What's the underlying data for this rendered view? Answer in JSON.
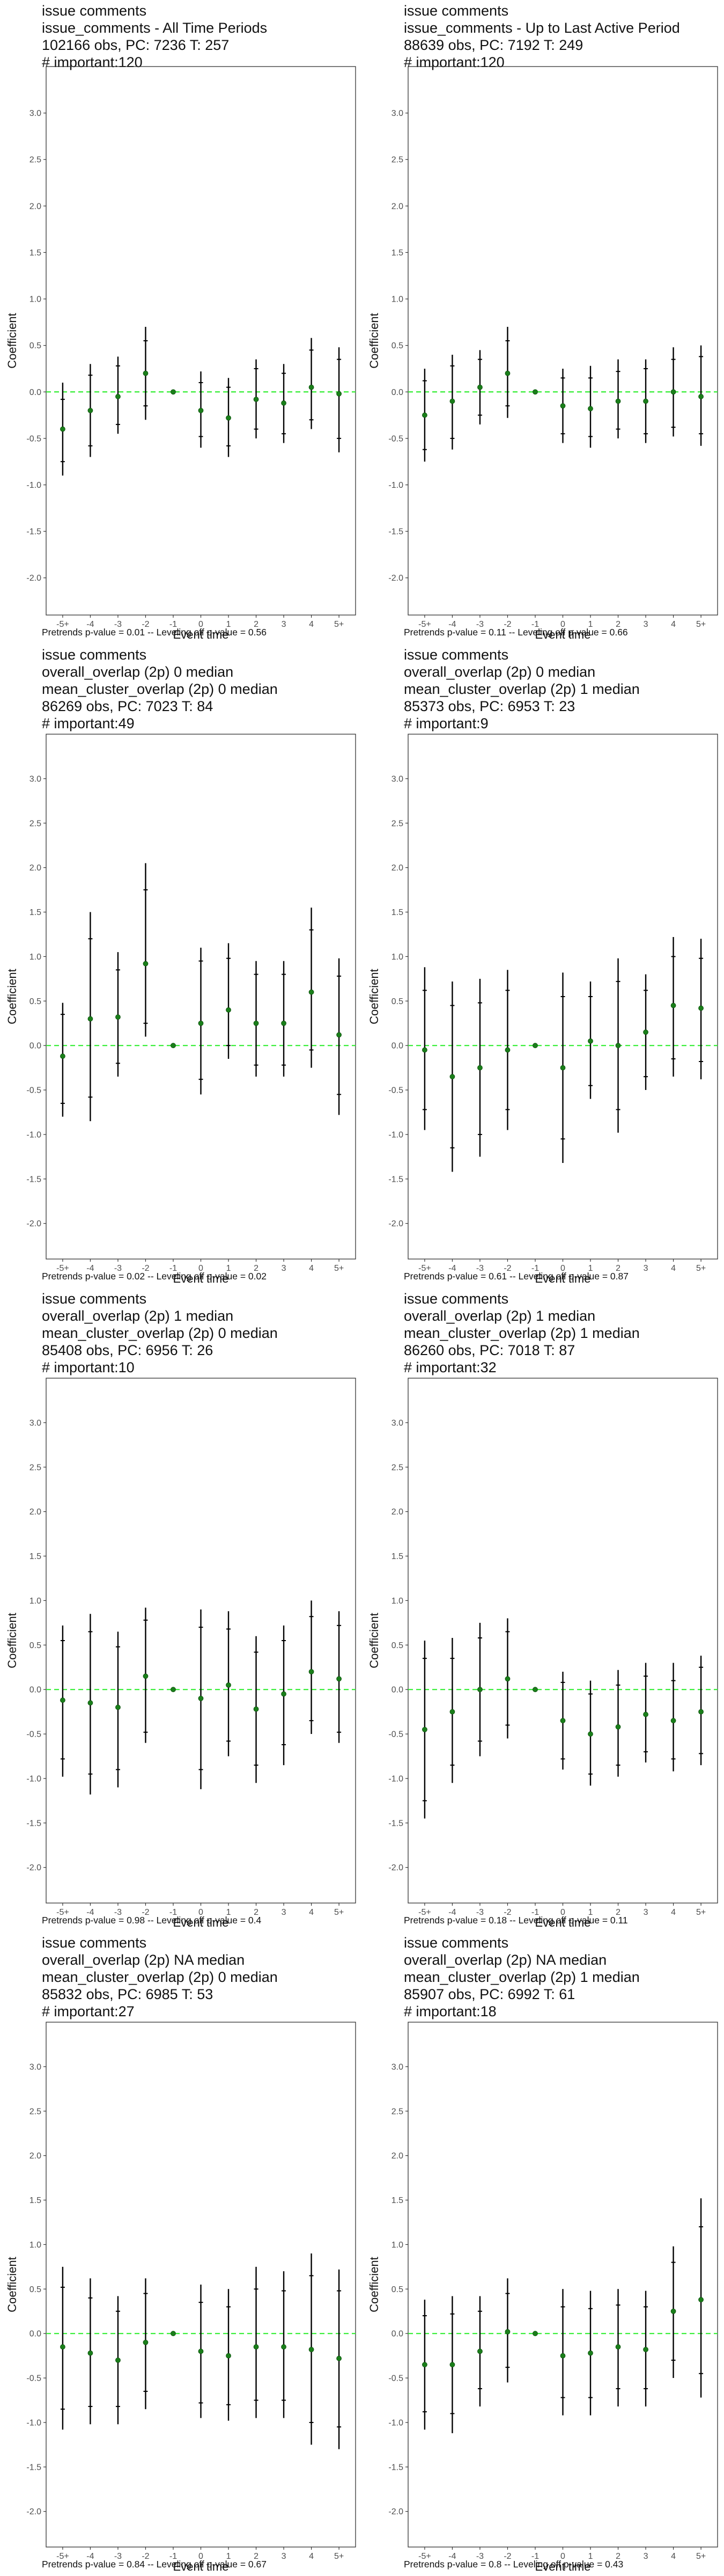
{
  "chart_data": [
    {
      "type": "errorbar",
      "title_lines": [
        "issue comments",
        "issue_comments - All Time Periods",
        "102166 obs, PC: 7236 T: 257",
        "# important:120"
      ],
      "xlabel": "Event time",
      "ylabel": "Coefficient",
      "ylim": [
        -2.4,
        3.5
      ],
      "yticks": [
        -2.0,
        -1.5,
        -1.0,
        -0.5,
        0.0,
        0.5,
        1.0,
        1.5,
        2.0,
        2.5,
        3.0
      ],
      "ytick_labels": [
        "-2.0",
        "-1.5",
        "-1.0",
        "-0.5",
        "0.0",
        "0.5",
        "1.0",
        "1.5",
        "2.0",
        "2.5",
        "3.0"
      ],
      "categories": [
        "-5+",
        "-4",
        "-3",
        "-2",
        "-1",
        "0",
        "1",
        "2",
        "3",
        "4",
        "5+"
      ],
      "estimates": [
        -0.4,
        -0.2,
        -0.05,
        0.2,
        0.0,
        -0.2,
        -0.28,
        -0.08,
        -0.12,
        0.05,
        -0.02
      ],
      "ci_outer_low": [
        -0.9,
        -0.7,
        -0.45,
        -0.3,
        0.0,
        -0.6,
        -0.7,
        -0.5,
        -0.55,
        -0.4,
        -0.65
      ],
      "ci_outer_high": [
        0.1,
        0.3,
        0.38,
        0.7,
        0.0,
        0.22,
        0.15,
        0.35,
        0.3,
        0.58,
        0.48
      ],
      "ci_inner_low": [
        -0.75,
        -0.58,
        -0.35,
        -0.15,
        0.0,
        -0.48,
        -0.58,
        -0.4,
        -0.45,
        -0.3,
        -0.5
      ],
      "ci_inner_high": [
        -0.08,
        0.18,
        0.28,
        0.55,
        0.0,
        0.1,
        0.05,
        0.25,
        0.2,
        0.45,
        0.35
      ],
      "reference_line": 0.0,
      "footer": "Pretrends p-value = 0.01 -- Leveling off p-value = 0.56",
      "colors": {
        "point": "#1a7f1a",
        "zero_line": "#33ee33",
        "errorbar": "#000000",
        "panel_border": "#333333"
      }
    },
    {
      "type": "errorbar",
      "title_lines": [
        "issue comments",
        "issue_comments - Up to Last Active Period",
        "88639 obs, PC: 7192 T: 249",
        "# important:120"
      ],
      "xlabel": "Event time",
      "ylabel": "Coefficient",
      "ylim": [
        -2.4,
        3.5
      ],
      "yticks": [
        -2.0,
        -1.5,
        -1.0,
        -0.5,
        0.0,
        0.5,
        1.0,
        1.5,
        2.0,
        2.5,
        3.0
      ],
      "ytick_labels": [
        "-2.0",
        "-1.5",
        "-1.0",
        "-0.5",
        "0.0",
        "0.5",
        "1.0",
        "1.5",
        "2.0",
        "2.5",
        "3.0"
      ],
      "categories": [
        "-5+",
        "-4",
        "-3",
        "-2",
        "-1",
        "0",
        "1",
        "2",
        "3",
        "4",
        "5+"
      ],
      "estimates": [
        -0.25,
        -0.1,
        0.05,
        0.2,
        0.0,
        -0.15,
        -0.18,
        -0.1,
        -0.1,
        0.0,
        -0.05
      ],
      "ci_outer_low": [
        -0.75,
        -0.62,
        -0.35,
        -0.28,
        0.0,
        -0.55,
        -0.6,
        -0.5,
        -0.55,
        -0.48,
        -0.58
      ],
      "ci_outer_high": [
        0.25,
        0.4,
        0.45,
        0.7,
        0.0,
        0.25,
        0.28,
        0.35,
        0.35,
        0.48,
        0.5
      ],
      "ci_inner_low": [
        -0.62,
        -0.5,
        -0.25,
        -0.15,
        0.0,
        -0.45,
        -0.48,
        -0.4,
        -0.45,
        -0.38,
        -0.45
      ],
      "ci_inner_high": [
        0.12,
        0.28,
        0.35,
        0.55,
        0.0,
        0.15,
        0.15,
        0.22,
        0.25,
        0.35,
        0.38
      ],
      "reference_line": 0.0,
      "footer": "Pretrends p-value = 0.11 -- Leveling off p-value = 0.66",
      "colors": {
        "point": "#1a7f1a",
        "zero_line": "#33ee33",
        "errorbar": "#000000",
        "panel_border": "#333333"
      }
    },
    {
      "type": "errorbar",
      "title_lines": [
        "issue comments",
        "overall_overlap (2p) 0 median",
        "mean_cluster_overlap (2p) 0 median",
        "86269 obs, PC: 7023 T: 84",
        "# important:49"
      ],
      "xlabel": "Event time",
      "ylabel": "Coefficient",
      "ylim": [
        -2.4,
        3.5
      ],
      "yticks": [
        -2.0,
        -1.5,
        -1.0,
        -0.5,
        0.0,
        0.5,
        1.0,
        1.5,
        2.0,
        2.5,
        3.0
      ],
      "ytick_labels": [
        "-2.0",
        "-1.5",
        "-1.0",
        "-0.5",
        "0.0",
        "0.5",
        "1.0",
        "1.5",
        "2.0",
        "2.5",
        "3.0"
      ],
      "categories": [
        "-5+",
        "-4",
        "-3",
        "-2",
        "-1",
        "0",
        "1",
        "2",
        "3",
        "4",
        "5+"
      ],
      "estimates": [
        -0.12,
        0.3,
        0.32,
        0.92,
        0.0,
        0.25,
        0.4,
        0.25,
        0.25,
        0.6,
        0.12
      ],
      "ci_outer_low": [
        -0.8,
        -0.85,
        -0.35,
        0.1,
        0.0,
        -0.55,
        -0.15,
        -0.35,
        -0.35,
        -0.25,
        -0.78
      ],
      "ci_outer_high": [
        0.48,
        1.5,
        1.05,
        2.05,
        0.0,
        1.1,
        1.15,
        0.95,
        0.95,
        1.55,
        0.98
      ],
      "ci_inner_low": [
        -0.65,
        -0.58,
        -0.2,
        0.25,
        0.0,
        -0.38,
        0.0,
        -0.22,
        -0.22,
        -0.05,
        -0.55
      ],
      "ci_inner_high": [
        0.35,
        1.2,
        0.85,
        1.75,
        0.0,
        0.95,
        0.98,
        0.8,
        0.8,
        1.3,
        0.78
      ],
      "reference_line": 0.0,
      "footer": "Pretrends p-value = 0.02 -- Leveling off p-value = 0.02",
      "colors": {
        "point": "#1a7f1a",
        "zero_line": "#33ee33",
        "errorbar": "#000000",
        "panel_border": "#333333"
      }
    },
    {
      "type": "errorbar",
      "title_lines": [
        "issue comments",
        "overall_overlap (2p) 0 median",
        "mean_cluster_overlap (2p) 1 median",
        "85373 obs, PC: 6953 T: 23",
        "# important:9"
      ],
      "xlabel": "Event time",
      "ylabel": "Coefficient",
      "ylim": [
        -2.4,
        3.5
      ],
      "yticks": [
        -2.0,
        -1.5,
        -1.0,
        -0.5,
        0.0,
        0.5,
        1.0,
        1.5,
        2.0,
        2.5,
        3.0
      ],
      "ytick_labels": [
        "-2.0",
        "-1.5",
        "-1.0",
        "-0.5",
        "0.0",
        "0.5",
        "1.0",
        "1.5",
        "2.0",
        "2.5",
        "3.0"
      ],
      "categories": [
        "-5+",
        "-4",
        "-3",
        "-2",
        "-1",
        "0",
        "1",
        "2",
        "3",
        "4",
        "5+"
      ],
      "estimates": [
        -0.05,
        -0.35,
        -0.25,
        -0.05,
        0.0,
        -0.25,
        0.05,
        0.0,
        0.15,
        0.45,
        0.42
      ],
      "ci_outer_low": [
        -0.95,
        -1.42,
        -1.25,
        -0.95,
        0.0,
        -1.32,
        -0.6,
        -0.98,
        -0.5,
        -0.35,
        -0.38
      ],
      "ci_outer_high": [
        0.88,
        0.72,
        0.75,
        0.85,
        0.0,
        0.82,
        0.72,
        0.98,
        0.8,
        1.22,
        1.2
      ],
      "ci_inner_low": [
        -0.72,
        -1.15,
        -1.0,
        -0.72,
        0.0,
        -1.05,
        -0.45,
        -0.72,
        -0.35,
        -0.15,
        -0.18
      ],
      "ci_inner_high": [
        0.62,
        0.45,
        0.48,
        0.62,
        0.0,
        0.55,
        0.55,
        0.72,
        0.62,
        1.0,
        0.98
      ],
      "reference_line": 0.0,
      "footer": "Pretrends p-value = 0.61 -- Leveling off p-value = 0.87",
      "colors": {
        "point": "#1a7f1a",
        "zero_line": "#33ee33",
        "errorbar": "#000000",
        "panel_border": "#333333"
      }
    },
    {
      "type": "errorbar",
      "title_lines": [
        "issue comments",
        "overall_overlap (2p) 1 median",
        "mean_cluster_overlap (2p) 0 median",
        "85408 obs, PC: 6956 T: 26",
        "# important:10"
      ],
      "xlabel": "Event time",
      "ylabel": "Coefficient",
      "ylim": [
        -2.4,
        3.5
      ],
      "yticks": [
        -2.0,
        -1.5,
        -1.0,
        -0.5,
        0.0,
        0.5,
        1.0,
        1.5,
        2.0,
        2.5,
        3.0
      ],
      "ytick_labels": [
        "-2.0",
        "-1.5",
        "-1.0",
        "-0.5",
        "0.0",
        "0.5",
        "1.0",
        "1.5",
        "2.0",
        "2.5",
        "3.0"
      ],
      "categories": [
        "-5+",
        "-4",
        "-3",
        "-2",
        "-1",
        "0",
        "1",
        "2",
        "3",
        "4",
        "5+"
      ],
      "estimates": [
        -0.12,
        -0.15,
        -0.2,
        0.15,
        0.0,
        -0.1,
        0.05,
        -0.22,
        -0.05,
        0.2,
        0.12
      ],
      "ci_outer_low": [
        -0.98,
        -1.18,
        -1.1,
        -0.6,
        0.0,
        -1.12,
        -0.75,
        -1.05,
        -0.85,
        -0.5,
        -0.6
      ],
      "ci_outer_high": [
        0.72,
        0.85,
        0.65,
        0.92,
        0.0,
        0.9,
        0.88,
        0.6,
        0.72,
        1.0,
        0.88
      ],
      "ci_inner_low": [
        -0.78,
        -0.95,
        -0.9,
        -0.48,
        0.0,
        -0.9,
        -0.58,
        -0.85,
        -0.62,
        -0.35,
        -0.48
      ],
      "ci_inner_high": [
        0.55,
        0.65,
        0.48,
        0.78,
        0.0,
        0.7,
        0.68,
        0.42,
        0.55,
        0.82,
        0.72
      ],
      "reference_line": 0.0,
      "footer": "Pretrends p-value = 0.98 -- Leveling off p-value = 0.4",
      "colors": {
        "point": "#1a7f1a",
        "zero_line": "#33ee33",
        "errorbar": "#000000",
        "panel_border": "#333333"
      }
    },
    {
      "type": "errorbar",
      "title_lines": [
        "issue comments",
        "overall_overlap (2p) 1 median",
        "mean_cluster_overlap (2p) 1 median",
        "86260 obs, PC: 7018 T: 87",
        "# important:32"
      ],
      "xlabel": "Event time",
      "ylabel": "Coefficient",
      "ylim": [
        -2.4,
        3.5
      ],
      "yticks": [
        -2.0,
        -1.5,
        -1.0,
        -0.5,
        0.0,
        0.5,
        1.0,
        1.5,
        2.0,
        2.5,
        3.0
      ],
      "ytick_labels": [
        "-2.0",
        "-1.5",
        "-1.0",
        "-0.5",
        "0.0",
        "0.5",
        "1.0",
        "1.5",
        "2.0",
        "2.5",
        "3.0"
      ],
      "categories": [
        "-5+",
        "-4",
        "-3",
        "-2",
        "-1",
        "0",
        "1",
        "2",
        "3",
        "4",
        "5+"
      ],
      "estimates": [
        -0.45,
        -0.25,
        0.0,
        0.12,
        0.0,
        -0.35,
        -0.5,
        -0.42,
        -0.28,
        -0.35,
        -0.25
      ],
      "ci_outer_low": [
        -1.45,
        -1.05,
        -0.75,
        -0.55,
        0.0,
        -0.9,
        -1.08,
        -0.98,
        -0.82,
        -0.92,
        -0.85
      ],
      "ci_outer_high": [
        0.55,
        0.58,
        0.75,
        0.8,
        0.0,
        0.2,
        0.1,
        0.22,
        0.3,
        0.3,
        0.38
      ],
      "ci_inner_low": [
        -1.25,
        -0.85,
        -0.58,
        -0.4,
        0.0,
        -0.78,
        -0.95,
        -0.85,
        -0.7,
        -0.78,
        -0.72
      ],
      "ci_inner_high": [
        0.35,
        0.35,
        0.58,
        0.65,
        0.0,
        0.08,
        -0.05,
        0.05,
        0.15,
        0.1,
        0.25
      ],
      "reference_line": 0.0,
      "footer": "Pretrends p-value = 0.18 -- Leveling off p-value = 0.11",
      "colors": {
        "point": "#1a7f1a",
        "zero_line": "#33ee33",
        "errorbar": "#000000",
        "panel_border": "#333333"
      }
    },
    {
      "type": "errorbar",
      "title_lines": [
        "issue comments",
        "overall_overlap (2p) NA median",
        "mean_cluster_overlap (2p) 0 median",
        "85832 obs, PC: 6985 T: 53",
        "# important:27"
      ],
      "xlabel": "Event time",
      "ylabel": "Coefficient",
      "ylim": [
        -2.4,
        3.5
      ],
      "yticks": [
        -2.0,
        -1.5,
        -1.0,
        -0.5,
        0.0,
        0.5,
        1.0,
        1.5,
        2.0,
        2.5,
        3.0
      ],
      "ytick_labels": [
        "-2.0",
        "-1.5",
        "-1.0",
        "-0.5",
        "0.0",
        "0.5",
        "1.0",
        "1.5",
        "2.0",
        "2.5",
        "3.0"
      ],
      "categories": [
        "-5+",
        "-4",
        "-3",
        "-2",
        "-1",
        "0",
        "1",
        "2",
        "3",
        "4",
        "5+"
      ],
      "estimates": [
        -0.15,
        -0.22,
        -0.3,
        -0.1,
        0.0,
        -0.2,
        -0.25,
        -0.15,
        -0.15,
        -0.18,
        -0.28
      ],
      "ci_outer_low": [
        -1.08,
        -1.02,
        -1.02,
        -0.85,
        0.0,
        -0.95,
        -0.98,
        -0.95,
        -0.95,
        -1.25,
        -1.3
      ],
      "ci_outer_high": [
        0.75,
        0.62,
        0.42,
        0.62,
        0.0,
        0.55,
        0.5,
        0.75,
        0.7,
        0.9,
        0.72
      ],
      "ci_inner_low": [
        -0.85,
        -0.82,
        -0.82,
        -0.65,
        0.0,
        -0.78,
        -0.8,
        -0.75,
        -0.75,
        -1.0,
        -1.05
      ],
      "ci_inner_high": [
        0.52,
        0.4,
        0.25,
        0.45,
        0.0,
        0.35,
        0.3,
        0.5,
        0.48,
        0.65,
        0.48
      ],
      "reference_line": 0.0,
      "footer": "Pretrends p-value = 0.84 -- Leveling off p-value = 0.67",
      "colors": {
        "point": "#1a7f1a",
        "zero_line": "#33ee33",
        "errorbar": "#000000",
        "panel_border": "#333333"
      }
    },
    {
      "type": "errorbar",
      "title_lines": [
        "issue comments",
        "overall_overlap (2p) NA median",
        "mean_cluster_overlap (2p) 1 median",
        "85907 obs, PC: 6992 T: 61",
        "# important:18"
      ],
      "xlabel": "Event time",
      "ylabel": "Coefficient",
      "ylim": [
        -2.4,
        3.5
      ],
      "yticks": [
        -2.0,
        -1.5,
        -1.0,
        -0.5,
        0.0,
        0.5,
        1.0,
        1.5,
        2.0,
        2.5,
        3.0
      ],
      "ytick_labels": [
        "-2.0",
        "-1.5",
        "-1.0",
        "-0.5",
        "0.0",
        "0.5",
        "1.0",
        "1.5",
        "2.0",
        "2.5",
        "3.0"
      ],
      "categories": [
        "-5+",
        "-4",
        "-3",
        "-2",
        "-1",
        "0",
        "1",
        "2",
        "3",
        "4",
        "5+"
      ],
      "estimates": [
        -0.35,
        -0.35,
        -0.2,
        0.02,
        0.0,
        -0.25,
        -0.22,
        -0.15,
        -0.18,
        0.25,
        0.38
      ],
      "ci_outer_low": [
        -1.08,
        -1.12,
        -0.82,
        -0.55,
        0.0,
        -0.92,
        -0.92,
        -0.82,
        -0.82,
        -0.5,
        -0.72
      ],
      "ci_outer_high": [
        0.38,
        0.42,
        0.42,
        0.62,
        0.0,
        0.5,
        0.48,
        0.5,
        0.48,
        0.98,
        1.52
      ],
      "ci_inner_low": [
        -0.88,
        -0.9,
        -0.62,
        -0.38,
        0.0,
        -0.72,
        -0.72,
        -0.62,
        -0.62,
        -0.3,
        -0.45
      ],
      "ci_inner_high": [
        0.2,
        0.22,
        0.25,
        0.45,
        0.0,
        0.3,
        0.28,
        0.32,
        0.3,
        0.8,
        1.2
      ],
      "reference_line": 0.0,
      "footer": "Pretrends p-value = 0.8 -- Leveling off p-value = 0.43",
      "colors": {
        "point": "#1a7f1a",
        "zero_line": "#33ee33",
        "errorbar": "#000000",
        "panel_border": "#333333"
      }
    }
  ]
}
